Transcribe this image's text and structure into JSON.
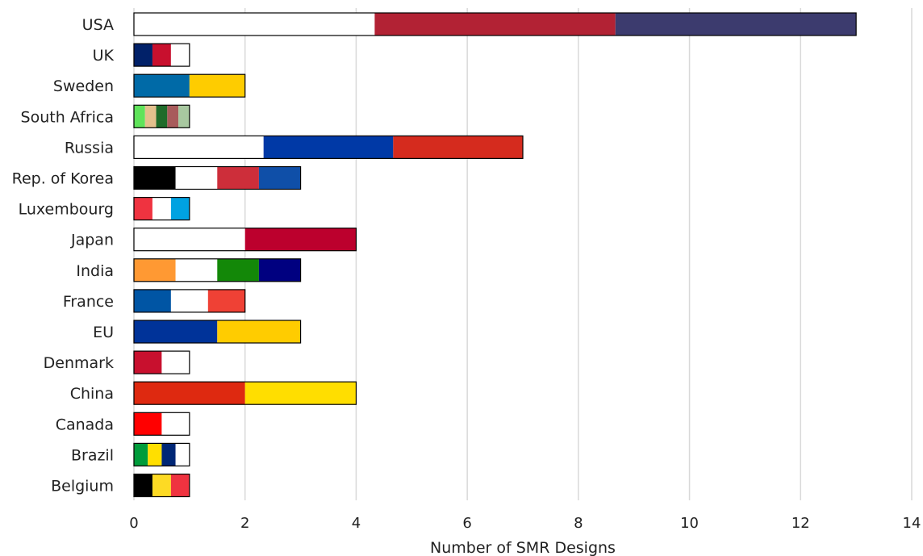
{
  "chart_data": {
    "type": "bar",
    "orientation": "horizontal",
    "stacked": true,
    "title": "",
    "xlabel": "Number of SMR Designs",
    "ylabel": "",
    "xlim": [
      0,
      14
    ],
    "xticks": [
      0,
      2,
      4,
      6,
      8,
      10,
      12,
      14
    ],
    "grid": "vertical",
    "legend": "none",
    "categories": [
      "USA",
      "UK",
      "Sweden",
      "South Africa",
      "Russia",
      "Rep. of Korea",
      "Luxembourg",
      "Japan",
      "India",
      "France",
      "EU",
      "Denmark",
      "China",
      "Canada",
      "Brazil",
      "Belgium"
    ],
    "values": [
      13,
      1,
      2,
      1,
      7,
      3,
      1,
      4,
      3,
      2,
      3,
      1,
      4,
      1,
      1,
      1
    ],
    "bar_fill_colors": [
      [
        "#ffffff",
        "#b22234",
        "#3c3b6e"
      ],
      [
        "#012169",
        "#c8102e",
        "#ffffff"
      ],
      [
        "#006aa7",
        "#fecc00"
      ],
      [
        "#5fe35a",
        "#e3c08d",
        "#1f6b2a",
        "#a85b5b",
        "#a8c8a0"
      ],
      [
        "#ffffff",
        "#0039a6",
        "#d52b1e"
      ],
      [
        "#000000",
        "#ffffff",
        "#cd2e3a",
        "#0f4fa8"
      ],
      [
        "#ef3340",
        "#ffffff",
        "#00a2e1"
      ],
      [
        "#ffffff",
        "#bc002d"
      ],
      [
        "#ff9933",
        "#ffffff",
        "#138808",
        "#000080"
      ],
      [
        "#0055a4",
        "#ffffff",
        "#ef4135"
      ],
      [
        "#003399",
        "#ffcc00"
      ],
      [
        "#c8102e",
        "#ffffff"
      ],
      [
        "#de2910",
        "#ffde00"
      ],
      [
        "#ff0000",
        "#ffffff"
      ],
      [
        "#009c3b",
        "#ffdf00",
        "#002776",
        "#ffffff"
      ],
      [
        "#000000",
        "#fdda24",
        "#ef3340"
      ]
    ],
    "grid_color": "#d9d9d9",
    "bar_border_color": "#000000"
  }
}
